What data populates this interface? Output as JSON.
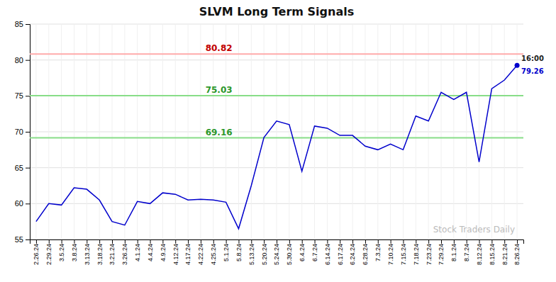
{
  "chart_data": {
    "type": "line",
    "title": "SLVM Long Term Signals",
    "categories": [
      "2.26.24",
      "2.29.24",
      "3.5.24",
      "3.8.24",
      "3.13.24",
      "3.18.24",
      "3.21.24",
      "3.26.24",
      "4.1.24",
      "4.4.24",
      "4.9.24",
      "4.12.24",
      "4.17.24",
      "4.22.24",
      "4.25.24",
      "5.1.24",
      "5.8.24",
      "5.13.24",
      "5.20.24",
      "5.24.24",
      "5.30.24",
      "6.4.24",
      "6.7.24",
      "6.14.24",
      "6.17.24",
      "6.24.24",
      "6.28.24",
      "7.3.24",
      "7.10.24",
      "7.15.24",
      "7.18.24",
      "7.23.24",
      "7.29.24",
      "8.1.24",
      "8.7.24",
      "8.12.24",
      "8.15.24",
      "8.21.24",
      "8.26.24"
    ],
    "values": [
      57.5,
      60.0,
      59.8,
      62.2,
      62.0,
      60.5,
      57.5,
      57.0,
      60.3,
      60.0,
      61.5,
      61.3,
      60.5,
      60.6,
      60.5,
      60.2,
      56.5,
      62.5,
      69.2,
      71.5,
      71.0,
      64.5,
      70.8,
      70.5,
      69.5,
      69.5,
      68.0,
      67.5,
      68.3,
      67.5,
      72.2,
      71.5,
      75.5,
      74.5,
      75.5,
      65.8,
      76.0,
      77.2,
      79.26
    ],
    "color": "#0000cc",
    "ylim": [
      55,
      85
    ],
    "yticks": [
      55,
      60,
      65,
      70,
      75,
      80,
      85
    ],
    "grid": true,
    "reference_lines": [
      {
        "value": 80.82,
        "label": "80.82",
        "color": "#ffaaaa"
      },
      {
        "value": 75.03,
        "label": "75.03",
        "color": "#88dd88"
      },
      {
        "value": 69.16,
        "label": "69.16",
        "color": "#88dd88"
      }
    ],
    "last_price": {
      "value": 79.26,
      "label": "79.26",
      "time_label": "16:00"
    },
    "watermark": "Stock Traders Daily"
  }
}
